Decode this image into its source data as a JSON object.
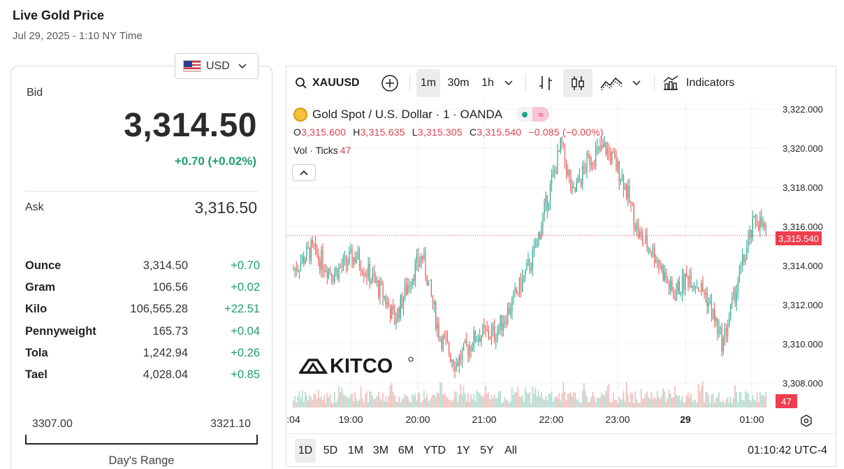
{
  "header": {
    "title": "Live Gold Price",
    "subtitle": "Jul 29, 2025 - 1:10 NY Time"
  },
  "currency": {
    "selected": "USD",
    "icon": "us-flag-icon"
  },
  "quote": {
    "bid_label": "Bid",
    "bid": "3,314.50",
    "change": "+0.70 (+0.02%)",
    "ask_label": "Ask",
    "ask": "3,316.50"
  },
  "units": [
    {
      "name": "Ounce",
      "price": "3,314.50",
      "change": "+0.70"
    },
    {
      "name": "Gram",
      "price": "106.56",
      "change": "+0.02"
    },
    {
      "name": "Kilo",
      "price": "106,565.28",
      "change": "+22.51"
    },
    {
      "name": "Pennyweight",
      "price": "165.73",
      "change": "+0.04"
    },
    {
      "name": "Tola",
      "price": "1,242.94",
      "change": "+0.26"
    },
    {
      "name": "Tael",
      "price": "4,028.04",
      "change": "+0.85"
    }
  ],
  "days_range": {
    "low": "3307.00",
    "high": "3321.10",
    "label": "Day's Range"
  },
  "toolbar": {
    "symbol": "XAUUSD",
    "intervals": [
      "1m",
      "30m",
      "1h"
    ],
    "active_interval": "1m",
    "indicators_label": "Indicators"
  },
  "legend": {
    "title": "Gold Spot / U.S. Dollar · 1 · OANDA",
    "pill_symbol": "≈",
    "o_label": "O",
    "o": "3,315.600",
    "h_label": "H",
    "h": "3,315.635",
    "l_label": "L",
    "l": "3,315.305",
    "c_label": "C",
    "c": "3,315.540",
    "chg": "−0.085 (−0.00%)",
    "vol_label": "Vol · Ticks",
    "vol": "47"
  },
  "price_axis": {
    "ticks": [
      "3,322.000",
      "3,320.000",
      "3,318.000",
      "3,316.000",
      "3,314.000",
      "3,312.000",
      "3,310.000",
      "3,308.000"
    ],
    "current_price": "3,315.540",
    "current_volume": "47"
  },
  "time_axis": {
    "ticks": [
      ":04",
      "19:00",
      "20:00",
      "21:00",
      "22:00",
      "23:00",
      "29",
      "01:00"
    ]
  },
  "range_buttons": [
    "1D",
    "5D",
    "1M",
    "3M",
    "6M",
    "YTD",
    "1Y",
    "5Y",
    "All"
  ],
  "active_range": "1D",
  "clock": "01:10:42 UTC-4",
  "watermark": "KITCO",
  "colors": {
    "up": "#1f9e6e",
    "down": "#e13e4e",
    "candle_up": "#22a68f",
    "candle_down": "#ef5350",
    "price_line": "#ef3e4e"
  },
  "chart_data": {
    "type": "candlestick",
    "ylim": [
      3307.0,
      3322.5
    ],
    "last_price": 3315.54,
    "x_labels": [
      "19:00",
      "20:00",
      "21:00",
      "22:00",
      "23:00",
      "29",
      "01:00"
    ],
    "close_path": [
      {
        "t": "18:04",
        "v": 3313.8
      },
      {
        "t": "18:20",
        "v": 3314.8
      },
      {
        "t": "18:40",
        "v": 3313.6
      },
      {
        "t": "19:00",
        "v": 3314.5
      },
      {
        "t": "19:25",
        "v": 3312.5
      },
      {
        "t": "19:35",
        "v": 3311.2
      },
      {
        "t": "19:50",
        "v": 3313.5
      },
      {
        "t": "20:00",
        "v": 3314.5
      },
      {
        "t": "20:15",
        "v": 3310.5
      },
      {
        "t": "20:30",
        "v": 3309.0
      },
      {
        "t": "20:50",
        "v": 3310.5
      },
      {
        "t": "21:05",
        "v": 3310.5
      },
      {
        "t": "21:20",
        "v": 3312.0
      },
      {
        "t": "21:40",
        "v": 3314.5
      },
      {
        "t": "21:55",
        "v": 3318.0
      },
      {
        "t": "22:05",
        "v": 3320.2
      },
      {
        "t": "22:15",
        "v": 3317.5
      },
      {
        "t": "22:30",
        "v": 3319.5
      },
      {
        "t": "22:45",
        "v": 3320.0
      },
      {
        "t": "23:00",
        "v": 3318.5
      },
      {
        "t": "23:15",
        "v": 3315.5
      },
      {
        "t": "23:30",
        "v": 3314.5
      },
      {
        "t": "23:45",
        "v": 3312.5
      },
      {
        "t": "00:00",
        "v": 3313.5
      },
      {
        "t": "00:15",
        "v": 3312.5
      },
      {
        "t": "00:30",
        "v": 3310.0
      },
      {
        "t": "00:45",
        "v": 3313.5
      },
      {
        "t": "01:00",
        "v": 3316.5
      },
      {
        "t": "01:10",
        "v": 3315.54
      }
    ]
  }
}
